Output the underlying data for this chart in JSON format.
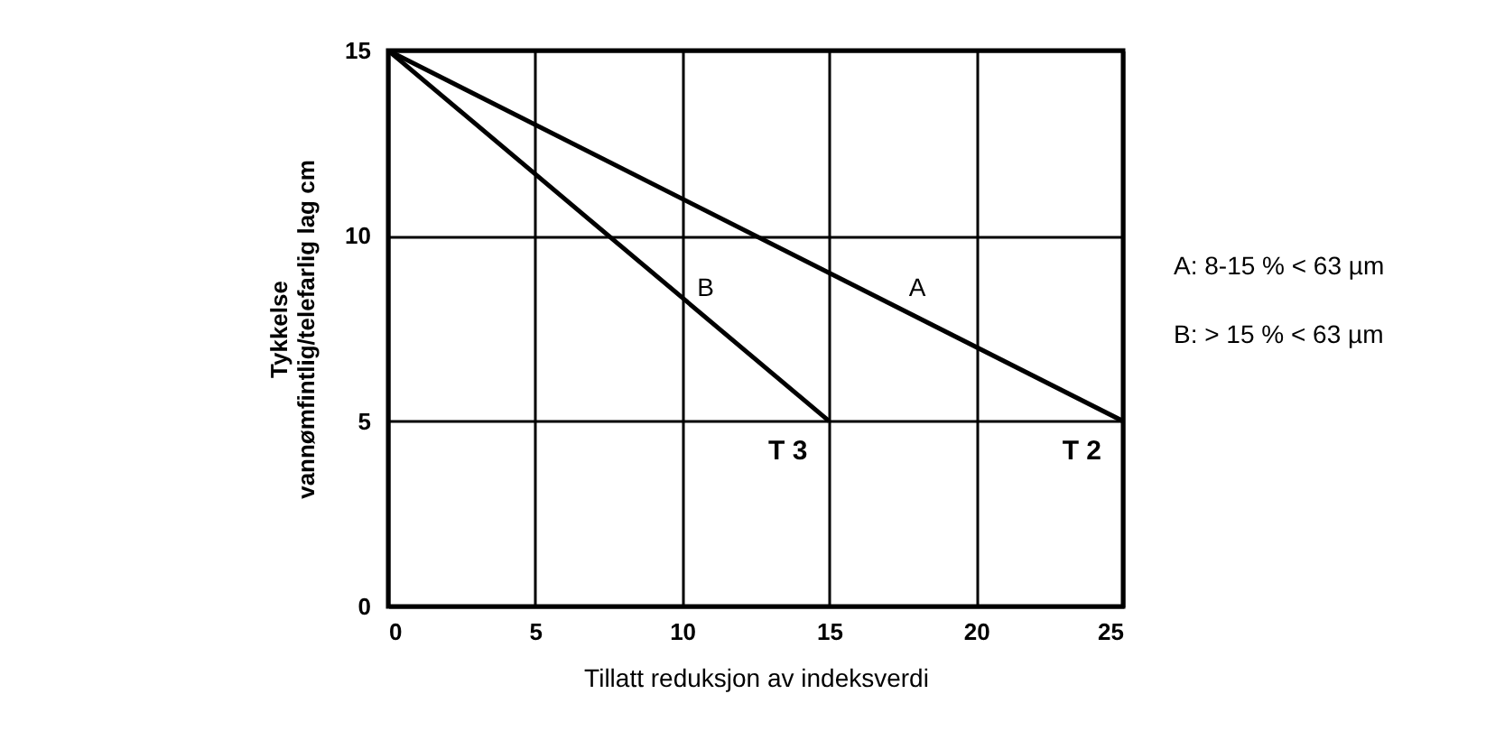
{
  "chart_data": {
    "type": "line",
    "xlabel": "Tillatt reduksjon av indeksverdi",
    "ylabel": "Tykkelse vannømfintlig/telefarlig lag cm",
    "xlim": [
      0,
      25
    ],
    "xticks": [
      0,
      5,
      10,
      15,
      20,
      25
    ],
    "ylim": [
      0,
      15
    ],
    "yticks": [
      0,
      5,
      10,
      15
    ],
    "grid": true,
    "line_style": "solid",
    "marker": "none",
    "series": [
      {
        "name": "A",
        "color": "#000000",
        "x": [
          0,
          25
        ],
        "values": [
          15,
          5
        ]
      },
      {
        "name": "B",
        "color": "#000000",
        "x": [
          0,
          15
        ],
        "values": [
          15,
          5
        ]
      }
    ],
    "annotations": [
      "T 2",
      "T 3",
      "A: 8-15 % < 63 µm",
      "B: > 15 % < 63 µm"
    ]
  }
}
